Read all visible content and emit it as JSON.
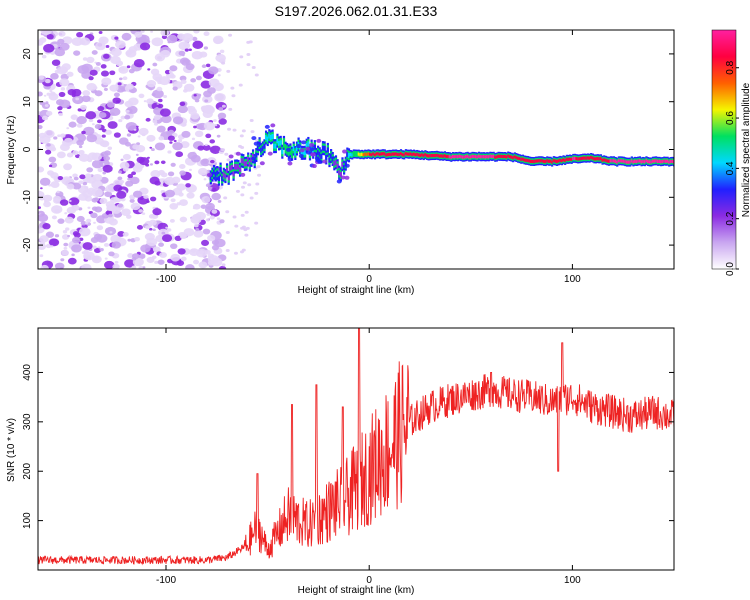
{
  "title": "S197.2026.062.01.31.E33",
  "chart_data": [
    {
      "type": "heatmap",
      "name": "spectrogram",
      "xlabel": "Height of straight line (km)",
      "ylabel": "Frequency (Hz)",
      "xlim": [
        -163,
        150
      ],
      "ylim": [
        -25,
        25
      ],
      "xticks": [
        -100,
        0,
        100
      ],
      "yticks": [
        -20,
        -10,
        0,
        10,
        20
      ],
      "noise_region_x": [
        -163,
        -78
      ],
      "signal_ridge": {
        "x": [
          -78,
          -70,
          -60,
          -50,
          -40,
          -30,
          -20,
          -14,
          -10,
          0,
          20,
          40,
          60,
          70,
          80,
          90,
          100,
          110,
          120,
          150
        ],
        "freq_hz": [
          -5,
          -5,
          -3,
          2,
          0,
          0,
          -1,
          -5,
          -1,
          -1,
          -1,
          -1.5,
          -1.5,
          -1.5,
          -2.5,
          -2.5,
          -2,
          -1.8,
          -2.5,
          -2.5
        ],
        "amplitude": [
          0.3,
          0.25,
          0.2,
          0.4,
          0.5,
          0.4,
          0.3,
          0.2,
          0.4,
          0.8,
          0.85,
          0.9,
          0.9,
          0.88,
          0.85,
          0.82,
          0.9,
          0.88,
          0.9,
          0.9
        ]
      },
      "colorbar": {
        "label": "Normalized spectral amplitude",
        "range": [
          0.0,
          0.95
        ],
        "ticks": [
          "0.0",
          "0.2",
          "0.4",
          "0.6",
          "0.8"
        ],
        "colors": [
          "#ffffff",
          "#c9a6f0",
          "#8b2be2",
          "#2020ff",
          "#00d8ff",
          "#00e060",
          "#f5f500",
          "#ff6000",
          "#ff0040",
          "#ff20a0"
        ]
      }
    },
    {
      "type": "line",
      "name": "snr",
      "xlabel": "Height of straight line (km)",
      "ylabel": "SNR (10 * v/v)",
      "xlim": [
        -163,
        150
      ],
      "ylim": [
        0,
        490
      ],
      "xticks": [
        -100,
        0,
        100
      ],
      "yticks": [
        100,
        200,
        300,
        400
      ],
      "color": "#ee2222",
      "envelope_x": [
        -163,
        -80,
        -70,
        -60,
        -55,
        -50,
        -40,
        -30,
        -20,
        -10,
        0,
        10,
        20,
        30,
        40,
        50,
        60,
        70,
        80,
        90,
        100,
        110,
        120,
        130,
        140,
        150
      ],
      "envelope_y": [
        20,
        20,
        25,
        50,
        90,
        40,
        110,
        90,
        120,
        150,
        200,
        250,
        300,
        330,
        345,
        355,
        365,
        355,
        350,
        340,
        350,
        330,
        320,
        310,
        320,
        310
      ],
      "spikes": [
        {
          "x": -55,
          "y": 195
        },
        {
          "x": -38,
          "y": 335
        },
        {
          "x": -26,
          "y": 375
        },
        {
          "x": -13,
          "y": 330
        },
        {
          "x": -5,
          "y": 490
        },
        {
          "x": 60,
          "y": 400
        },
        {
          "x": 95,
          "y": 460
        },
        {
          "x": 93,
          "y": 200
        }
      ]
    }
  ]
}
